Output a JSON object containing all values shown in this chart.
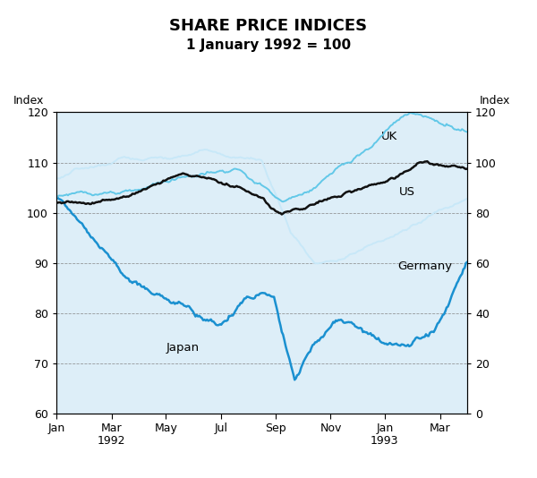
{
  "title": "SHARE PRICE INDICES",
  "subtitle": "1 January 1992 = 100",
  "ylabel_left": "Index",
  "ylabel_right": "Index",
  "ylim_left": [
    60,
    120
  ],
  "ylim_right": [
    0,
    120
  ],
  "yticks_left": [
    60,
    70,
    80,
    90,
    100,
    110,
    120
  ],
  "yticks_right": [
    0,
    20,
    40,
    60,
    80,
    100,
    120
  ],
  "fig_bg_color": "#ffffff",
  "plot_bg_color": "#ddeef8",
  "title_fontsize": 13,
  "subtitle_fontsize": 11,
  "colors": {
    "UK": "#62c8e8",
    "US": "#111111",
    "Germany": "#c8e8f8",
    "Japan": "#1a90d0"
  },
  "linewidths": {
    "UK": 1.4,
    "US": 1.8,
    "Germany": 1.4,
    "Japan": 1.8
  },
  "xtick_labels": [
    "Jan",
    "Mar",
    "May",
    "Jul",
    "Sep",
    "Nov",
    "Jan",
    "Mar"
  ],
  "n_points": 320,
  "month_positions": [
    0,
    43,
    85,
    128,
    170,
    213,
    255,
    298
  ]
}
